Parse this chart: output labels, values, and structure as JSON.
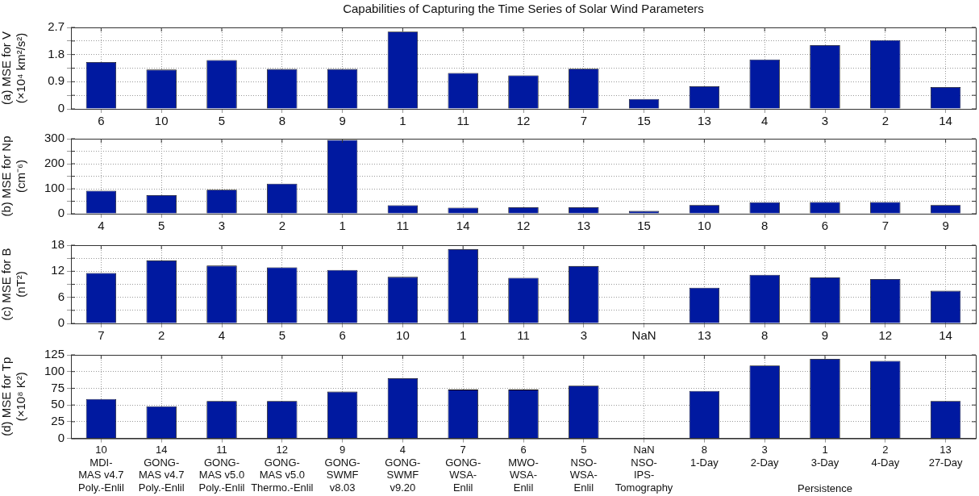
{
  "chart_data": [
    {
      "type": "bar",
      "title": "Capabilities of Capturing the Time Series of Solar Wind Parameters",
      "ylabel": "(a) MSE for V\n(×10⁴ km²/s²)",
      "categories": [
        "6",
        "10",
        "5",
        "8",
        "9",
        "1",
        "11",
        "12",
        "7",
        "15",
        "13",
        "4",
        "3",
        "2",
        "14"
      ],
      "color": "#0019a0",
      "values": [
        1.55,
        1.3,
        1.62,
        1.32,
        1.32,
        2.56,
        1.19,
        1.11,
        1.33,
        0.33,
        0.75,
        1.64,
        2.11,
        2.28,
        0.72
      ],
      "ylim": [
        0,
        2.7
      ],
      "yticks": [
        0,
        {
          "value": 0.45,
          "label": null
        },
        0.9,
        {
          "value": 1.35,
          "label": null
        },
        1.8,
        {
          "value": 2.25,
          "label": null
        },
        2.7
      ],
      "grid": true
    },
    {
      "type": "bar",
      "ylabel": "(b) MSE for Np\n(cm⁻⁶)",
      "categories": [
        "4",
        "5",
        "3",
        "2",
        "1",
        "11",
        "14",
        "12",
        "13",
        "15",
        "10",
        "8",
        "6",
        "7",
        "9"
      ],
      "color": "#0019a0",
      "values": [
        92,
        74,
        96,
        120,
        295,
        34,
        24,
        26,
        26,
        11,
        35,
        46,
        47,
        47,
        35
      ],
      "ylim": [
        0,
        300
      ],
      "yticks": [
        0,
        {
          "value": 50,
          "label": null
        },
        100,
        {
          "value": 150,
          "label": null
        },
        200,
        {
          "value": 250,
          "label": null
        },
        300
      ],
      "grid": true
    },
    {
      "type": "bar",
      "ylabel": "(c) MSE for B\n(nT²)",
      "categories": [
        "7",
        "2",
        "4",
        "5",
        "6",
        "10",
        "1",
        "11",
        "3",
        "NaN",
        "13",
        "8",
        "9",
        "12",
        "14"
      ],
      "color": "#0019a0",
      "values": [
        11.6,
        14.5,
        13.3,
        12.9,
        12.3,
        10.7,
        17.1,
        10.5,
        13.2,
        null,
        8.2,
        11.2,
        10.6,
        10.2,
        7.5
      ],
      "ylim": [
        0,
        18
      ],
      "yticks": [
        0,
        {
          "value": 3,
          "label": null
        },
        6,
        {
          "value": 9,
          "label": null
        },
        12,
        {
          "value": 15,
          "label": null
        },
        18
      ],
      "grid": true
    },
    {
      "type": "bar",
      "ylabel": "(d) MSE for Tp\n(×10⁸ K²)",
      "categories": [
        "10\nMDI-\nMAS v4.7\nPoly.-Enlil",
        "14\nGONG-\nMAS v4.7\nPoly.-Enlil",
        "11\nGONG-\nMAS v5.0\nPoly.-Enlil",
        "12\nGONG-\nMAS v5.0\nThermo.-Enlil",
        "9\nGONG-\nSWMF\nv8.03",
        "4\nGONG-\nSWMF\nv9.20",
        "7\nGONG-\nWSA-\nEnlil",
        "6\nMWO-\nWSA-\nEnlil",
        "5\nNSO-\nWSA-\nEnlil",
        "NaN\nNSO-\nIPS-\nTomography",
        "8\n1-Day",
        "3\n2-Day",
        "1\n3-Day",
        "2\n4-Day",
        "13\n27-Day"
      ],
      "color": "#0019a0",
      "values": [
        59,
        48,
        56,
        56,
        70,
        90,
        73,
        73,
        79,
        null,
        71,
        109,
        119,
        116,
        56
      ],
      "ylim": [
        0,
        125
      ],
      "yticks": [
        0,
        25,
        50,
        75,
        100,
        125
      ],
      "grid": true,
      "annotations": [
        "Persistence"
      ]
    }
  ]
}
